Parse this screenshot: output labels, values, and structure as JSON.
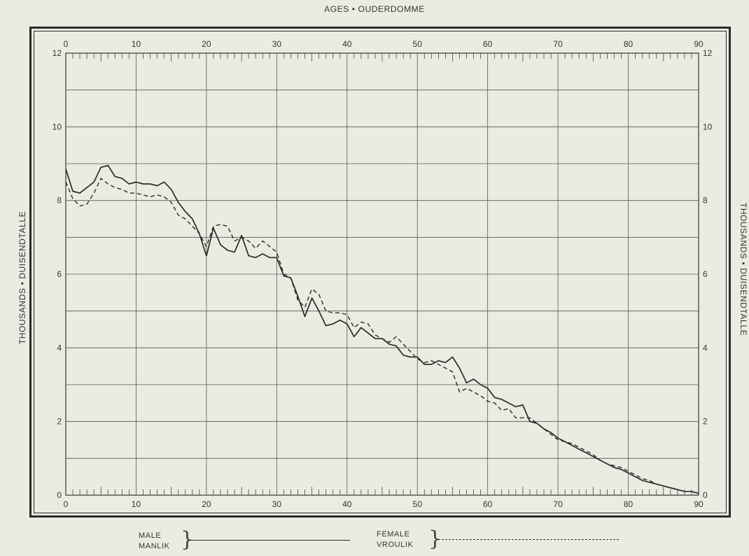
{
  "page": {
    "top_title": "AGES • OUDERDOMME",
    "y_label_left": "THOUSANDS • DUISENDTALLE",
    "y_label_right": "THOUSANDS • DUISENDTALLE"
  },
  "legend": {
    "male_en": "MALE",
    "male_af": "MANLIK",
    "female_en": "FEMALE",
    "female_af": "VROULIK"
  },
  "chart_data": {
    "type": "line",
    "title": "AGES • OUDERDOMME",
    "xlabel": "",
    "ylabel": "THOUSANDS • DUISENDTALLE",
    "xlim": [
      0,
      90
    ],
    "ylim": [
      0,
      12
    ],
    "x_ticks": [
      0,
      10,
      20,
      30,
      40,
      50,
      60,
      70,
      80,
      90
    ],
    "y_ticks": [
      0,
      2,
      4,
      6,
      8,
      10,
      12
    ],
    "grid": true,
    "legend_position": "bottom",
    "series": [
      {
        "name": "MALE • MANLIK",
        "style": "solid",
        "color": "#2a2a2a",
        "x": [
          0,
          1,
          2,
          3,
          4,
          5,
          6,
          7,
          8,
          9,
          10,
          11,
          12,
          13,
          14,
          15,
          16,
          17,
          18,
          19,
          20,
          21,
          22,
          23,
          24,
          25,
          26,
          27,
          28,
          29,
          30,
          31,
          32,
          33,
          34,
          35,
          36,
          37,
          38,
          39,
          40,
          41,
          42,
          43,
          44,
          45,
          46,
          47,
          48,
          49,
          50,
          51,
          52,
          53,
          54,
          55,
          56,
          57,
          58,
          59,
          60,
          61,
          62,
          63,
          64,
          65,
          66,
          67,
          68,
          69,
          70,
          71,
          72,
          73,
          74,
          75,
          76,
          77,
          78,
          79,
          80,
          81,
          82,
          83,
          84,
          85,
          86,
          87,
          88,
          89,
          90
        ],
        "values": [
          8.85,
          8.25,
          8.2,
          8.35,
          8.5,
          8.9,
          8.95,
          8.65,
          8.6,
          8.45,
          8.5,
          8.45,
          8.45,
          8.4,
          8.5,
          8.3,
          7.95,
          7.7,
          7.5,
          7.1,
          6.5,
          7.25,
          6.8,
          6.65,
          6.6,
          7.05,
          6.5,
          6.45,
          6.55,
          6.45,
          6.45,
          5.95,
          5.9,
          5.4,
          4.85,
          5.35,
          5.0,
          4.6,
          4.65,
          4.75,
          4.65,
          4.3,
          4.55,
          4.4,
          4.25,
          4.25,
          4.1,
          4.05,
          3.8,
          3.75,
          3.75,
          3.55,
          3.55,
          3.65,
          3.6,
          3.75,
          3.45,
          3.05,
          3.15,
          3.0,
          2.9,
          2.65,
          2.6,
          2.5,
          2.4,
          2.45,
          2.0,
          1.95,
          1.8,
          1.7,
          1.55,
          1.45,
          1.35,
          1.25,
          1.15,
          1.05,
          0.95,
          0.85,
          0.75,
          0.7,
          0.6,
          0.5,
          0.4,
          0.35,
          0.3,
          0.25,
          0.2,
          0.15,
          0.1,
          0.1,
          0.05
        ]
      },
      {
        "name": "FEMALE • VROULIK",
        "style": "dashed",
        "color": "#2a2a2a",
        "x": [
          0,
          1,
          2,
          3,
          4,
          5,
          6,
          7,
          8,
          9,
          10,
          11,
          12,
          13,
          14,
          15,
          16,
          17,
          18,
          19,
          20,
          21,
          22,
          23,
          24,
          25,
          26,
          27,
          28,
          29,
          30,
          31,
          32,
          33,
          34,
          35,
          36,
          37,
          38,
          39,
          40,
          41,
          42,
          43,
          44,
          45,
          46,
          47,
          48,
          49,
          50,
          51,
          52,
          53,
          54,
          55,
          56,
          57,
          58,
          59,
          60,
          61,
          62,
          63,
          64,
          65,
          66,
          67,
          68,
          69,
          70,
          71,
          72,
          73,
          74,
          75,
          76,
          77,
          78,
          79,
          80,
          81,
          82,
          83,
          84,
          85,
          86,
          87,
          88,
          89,
          90
        ],
        "values": [
          8.5,
          8.05,
          7.85,
          7.9,
          8.2,
          8.6,
          8.45,
          8.35,
          8.3,
          8.2,
          8.2,
          8.15,
          8.1,
          8.15,
          8.1,
          7.95,
          7.6,
          7.5,
          7.3,
          7.1,
          6.75,
          7.3,
          7.35,
          7.3,
          6.9,
          7.0,
          6.9,
          6.7,
          6.9,
          6.75,
          6.6,
          6.0,
          5.9,
          5.3,
          5.1,
          5.6,
          5.45,
          5.0,
          4.95,
          4.95,
          4.9,
          4.55,
          4.7,
          4.65,
          4.35,
          4.25,
          4.15,
          4.3,
          4.1,
          3.9,
          3.7,
          3.6,
          3.65,
          3.55,
          3.45,
          3.35,
          2.8,
          2.9,
          2.8,
          2.7,
          2.55,
          2.5,
          2.3,
          2.35,
          2.1,
          2.1,
          2.1,
          1.95,
          1.8,
          1.65,
          1.5,
          1.45,
          1.4,
          1.3,
          1.2,
          1.1,
          0.95,
          0.85,
          0.8,
          0.75,
          0.65,
          0.55,
          0.45,
          0.4,
          0.3,
          0.25,
          0.2,
          0.15,
          0.1,
          0.1,
          0.05
        ]
      }
    ]
  }
}
